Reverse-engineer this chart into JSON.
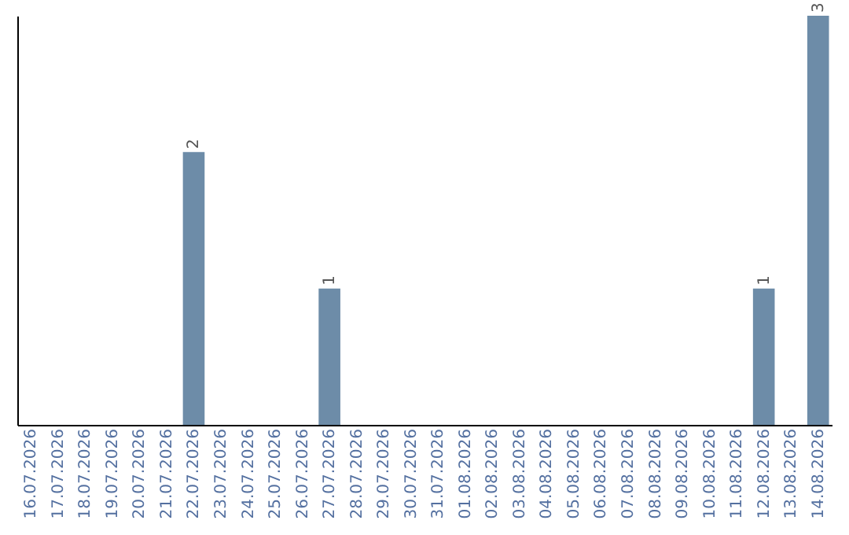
{
  "chart_data": {
    "type": "bar",
    "categories": [
      "16.07.2026",
      "17.07.2026",
      "18.07.2026",
      "19.07.2026",
      "20.07.2026",
      "21.07.2026",
      "22.07.2026",
      "23.07.2026",
      "24.07.2026",
      "25.07.2026",
      "26.07.2026",
      "27.07.2026",
      "28.07.2026",
      "29.07.2026",
      "30.07.2026",
      "31.07.2026",
      "01.08.2026",
      "02.08.2026",
      "03.08.2026",
      "04.08.2026",
      "05.08.2026",
      "06.08.2026",
      "07.08.2026",
      "08.08.2026",
      "09.08.2026",
      "10.08.2026",
      "11.08.2026",
      "12.08.2026",
      "13.08.2026",
      "14.08.2026"
    ],
    "values": [
      0,
      0,
      0,
      0,
      0,
      0,
      2,
      0,
      0,
      0,
      0,
      1,
      0,
      0,
      0,
      0,
      0,
      0,
      0,
      0,
      0,
      0,
      0,
      0,
      0,
      0,
      0,
      1,
      0,
      3
    ],
    "value_labels": [
      null,
      null,
      null,
      null,
      null,
      null,
      "2",
      null,
      null,
      null,
      null,
      "1",
      null,
      null,
      null,
      null,
      null,
      null,
      null,
      null,
      null,
      null,
      null,
      null,
      null,
      null,
      null,
      "1",
      null,
      "3"
    ],
    "color": "#6d8ca8",
    "grid": false,
    "tick_labels": "x"
  }
}
